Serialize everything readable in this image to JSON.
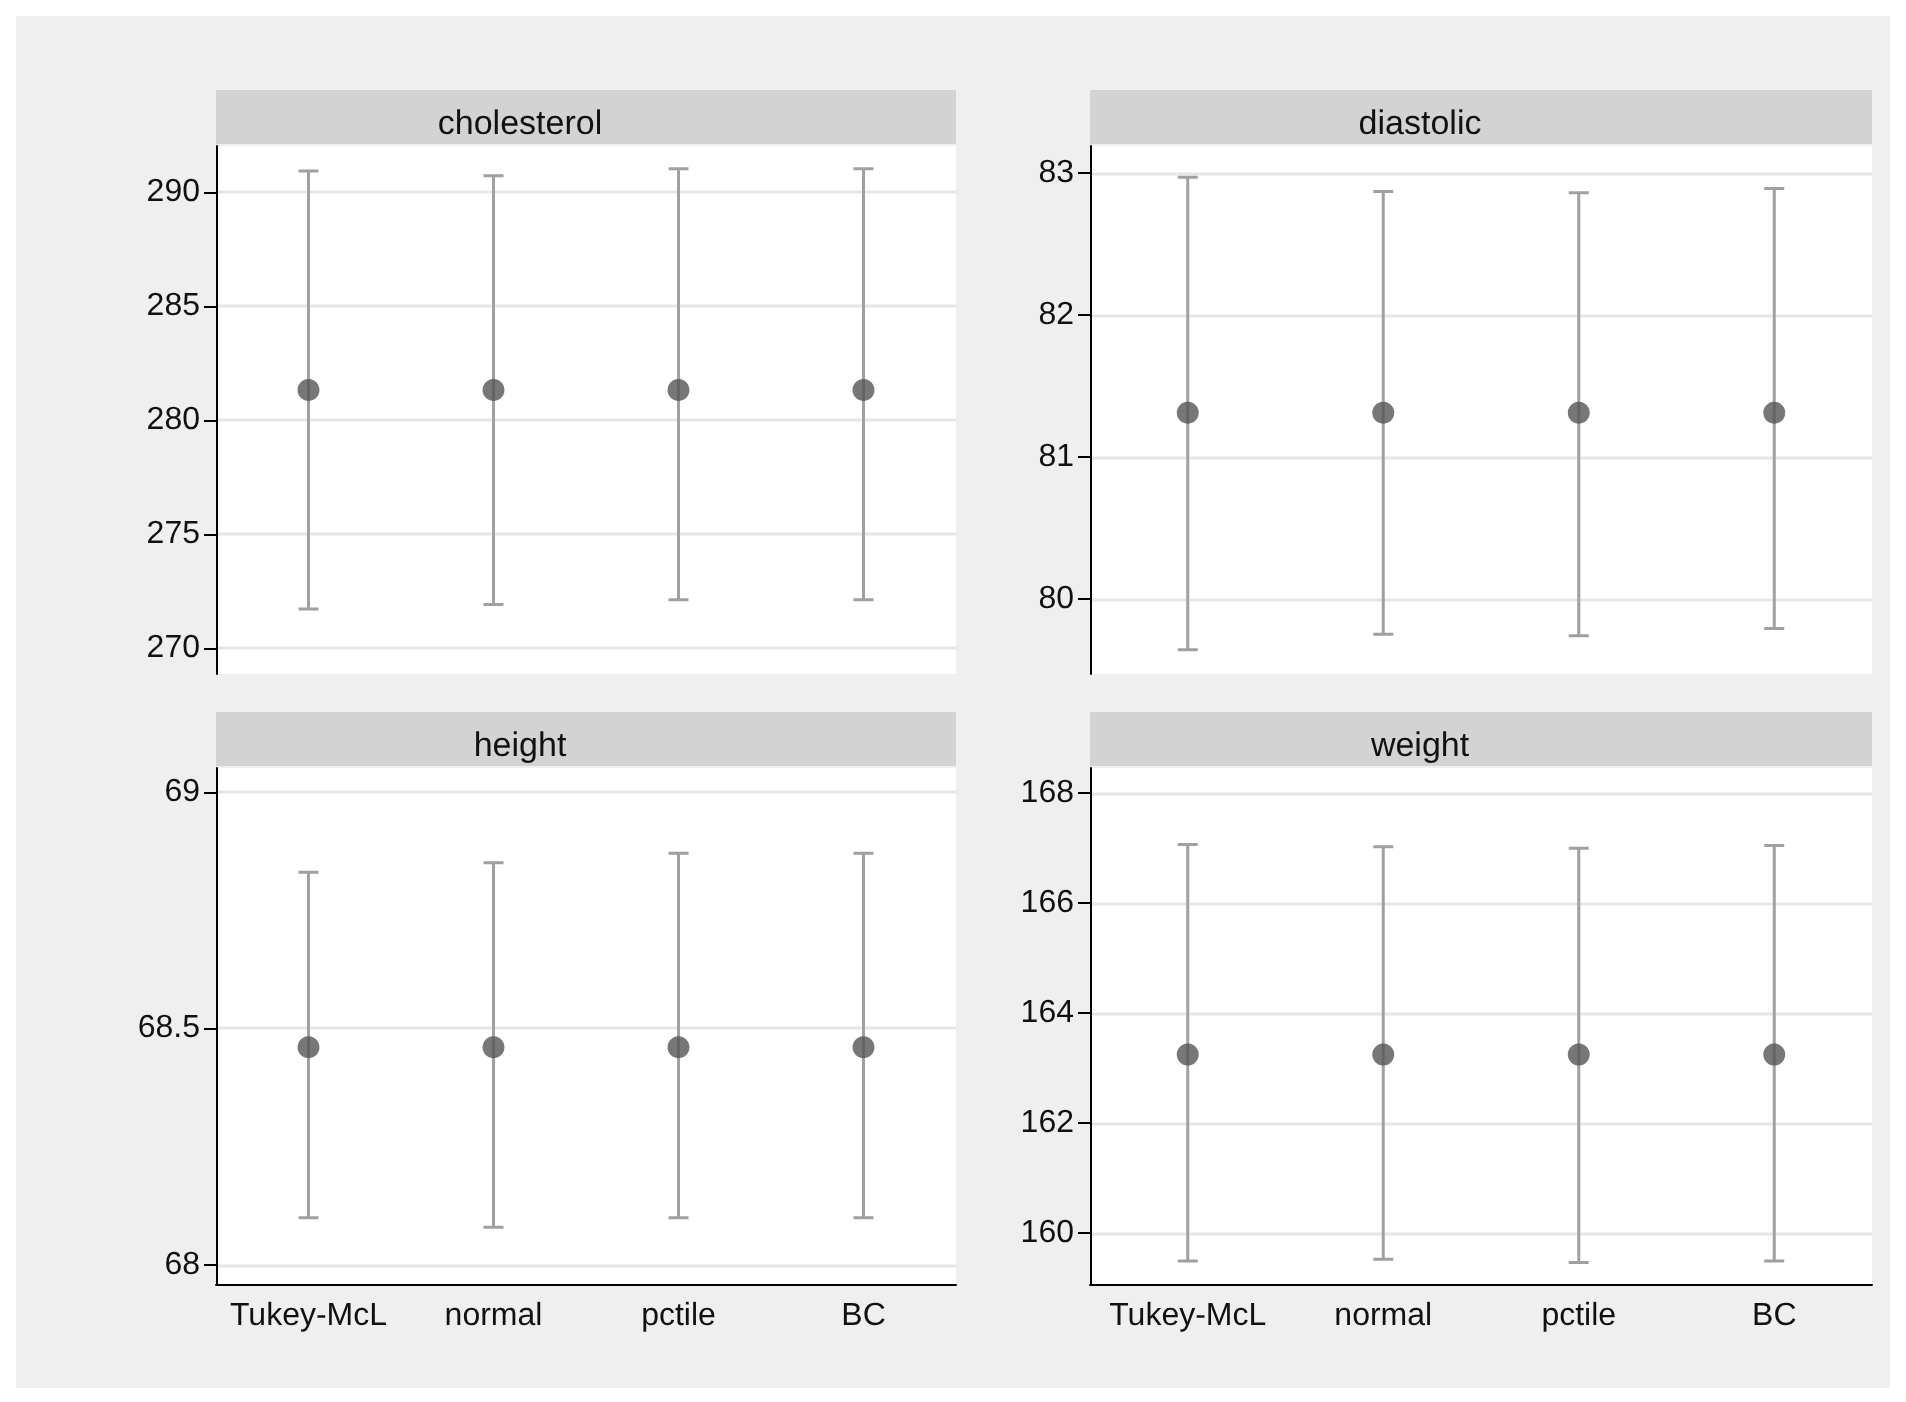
{
  "chart_data": [
    {
      "type": "scatter",
      "title": "cholesterol",
      "categories": [
        null,
        null,
        null,
        null
      ],
      "ylim": [
        268.85,
        292
      ],
      "yticks": [
        270,
        275,
        280,
        285,
        290
      ],
      "grid": "y",
      "marker": "circle",
      "tick_labels": "y",
      "series": [
        {
          "color": "#555555",
          "values": [
            281.3,
            281.3,
            281.3,
            281.3
          ],
          "errors": [
            [
              271.7,
              290.9
            ],
            [
              271.9,
              290.7
            ],
            [
              272.1,
              291.0
            ],
            [
              272.1,
              291.0
            ]
          ]
        }
      ]
    },
    {
      "type": "scatter",
      "title": "diastolic",
      "categories": [
        null,
        null,
        null,
        null
      ],
      "ylim": [
        79.47,
        83.19
      ],
      "yticks": [
        80,
        81,
        82,
        83
      ],
      "grid": "y",
      "marker": "circle",
      "tick_labels": "y",
      "series": [
        {
          "color": "#555555",
          "values": [
            81.31,
            81.31,
            81.31,
            81.31
          ],
          "errors": [
            [
              79.64,
              82.97
            ],
            [
              79.75,
              82.87
            ],
            [
              79.74,
              82.86
            ],
            [
              79.79,
              82.89
            ]
          ]
        }
      ]
    },
    {
      "type": "scatter",
      "title": "height",
      "categories": [
        "Tukey-McL",
        "normal",
        "pctile",
        "BC"
      ],
      "ylim": [
        67.96,
        69.05
      ],
      "yticks": [
        68,
        68.5,
        69
      ],
      "grid": "y",
      "marker": "circle",
      "series": [
        {
          "color": "#555555",
          "values": [
            68.46,
            68.46,
            68.46,
            68.46
          ],
          "errors": [
            [
              68.1,
              68.83
            ],
            [
              68.08,
              68.85
            ],
            [
              68.1,
              68.87
            ],
            [
              68.1,
              68.87
            ]
          ]
        }
      ]
    },
    {
      "type": "scatter",
      "title": "weight",
      "categories": [
        "Tukey-McL",
        "normal",
        "pctile",
        "BC"
      ],
      "ylim": [
        159.08,
        168.46
      ],
      "yticks": [
        160,
        162,
        164,
        166,
        168
      ],
      "grid": "y",
      "marker": "circle",
      "series": [
        {
          "color": "#555555",
          "values": [
            163.25,
            163.25,
            163.25,
            163.25
          ],
          "errors": [
            [
              159.5,
              167.07
            ],
            [
              159.53,
              167.03
            ],
            [
              159.47,
              167.0
            ],
            [
              159.5,
              167.05
            ]
          ]
        }
      ]
    }
  ]
}
